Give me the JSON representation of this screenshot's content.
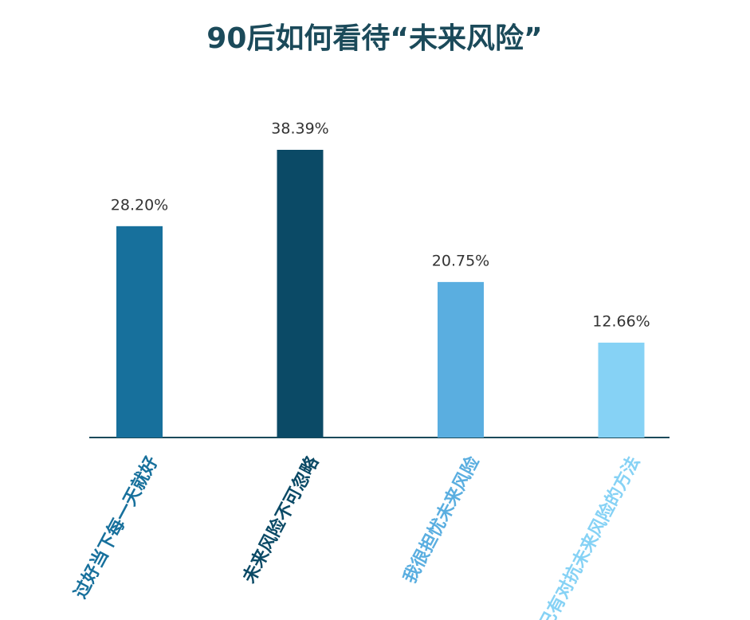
{
  "chart_data": {
    "type": "bar",
    "title": "90后如何看待“未来风险”",
    "categories": [
      "过好当下每一天就好",
      "未来风险不可忽略",
      "我很担忧未来风险",
      "已有对抗未来风险的方法"
    ],
    "values": [
      28.2,
      38.39,
      20.75,
      12.66
    ],
    "value_labels": [
      "28.20%",
      "38.39%",
      "20.75%",
      "12.66%"
    ],
    "colors": [
      "#17709c",
      "#0b4a66",
      "#5aaee0",
      "#86d2f5"
    ]
  }
}
